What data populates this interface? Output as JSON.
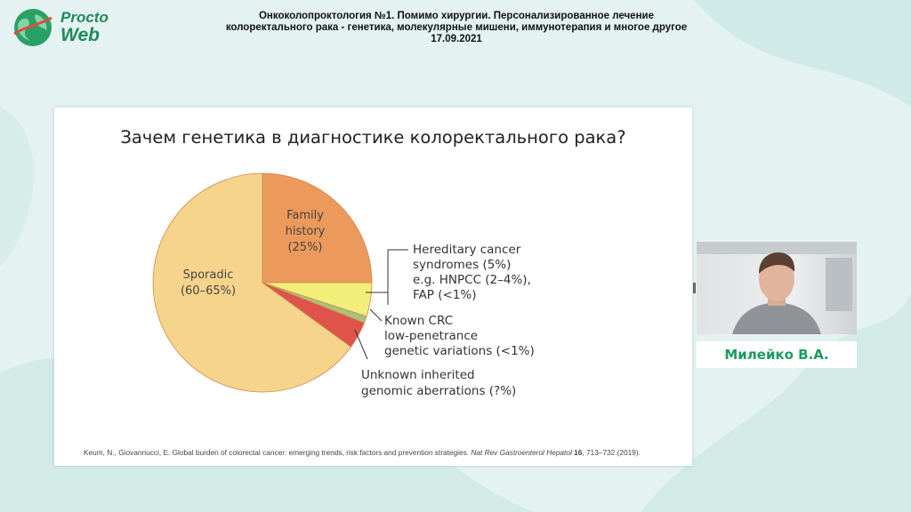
{
  "logo": {
    "line1": "Procto",
    "line2": "Web"
  },
  "header": {
    "line1": "Онкоколопроктология №1. Помимо хирургии. Персонализированное лечение",
    "line2": "колоректального рака - генетика, молекулярные мишени, иммунотерапия и многое другое",
    "line3": "17.09.2021"
  },
  "slide": {
    "title": "Зачем генетика в диагностике колоректального рака?",
    "citation_authors": "Keum, N., Giovannucci, E. Global burden of colorectal cancer: emerging trends, risk factors and prevention strategies.",
    "citation_journal": "Nat Rev Gastroenterol Hepatol",
    "citation_volume": "16",
    "citation_pages": ", 713–732 (2019)."
  },
  "chart_data": {
    "type": "pie",
    "title": "Зачем генетика в диагностике колоректального рака?",
    "slices": [
      {
        "labels": [
          "Family",
          "history",
          "(25%)"
        ],
        "value": 25,
        "color": "#ec9a5c"
      },
      {
        "labels": [
          "Hereditary cancer",
          "syndromes (5%)",
          "e.g. HNPCC (2–4%),",
          "FAP (<1%)"
        ],
        "value": 5,
        "color": "#f3ee7a"
      },
      {
        "labels": [
          "Known CRC",
          "low-penetrance",
          "genetic variations (<1%)"
        ],
        "value": 1,
        "color": "#a9c27a"
      },
      {
        "labels": [
          "Unknown inherited",
          "genomic aberrations (?%)"
        ],
        "value": 4,
        "color": "#e0534a"
      },
      {
        "labels": [
          "Sporadic",
          "(60–65%)"
        ],
        "value": 65,
        "color": "#f6d48c"
      }
    ]
  },
  "speaker": {
    "name": "Милейко В.А."
  },
  "colors": {
    "brand": "#1f8a58",
    "name": "#1c9a62"
  }
}
